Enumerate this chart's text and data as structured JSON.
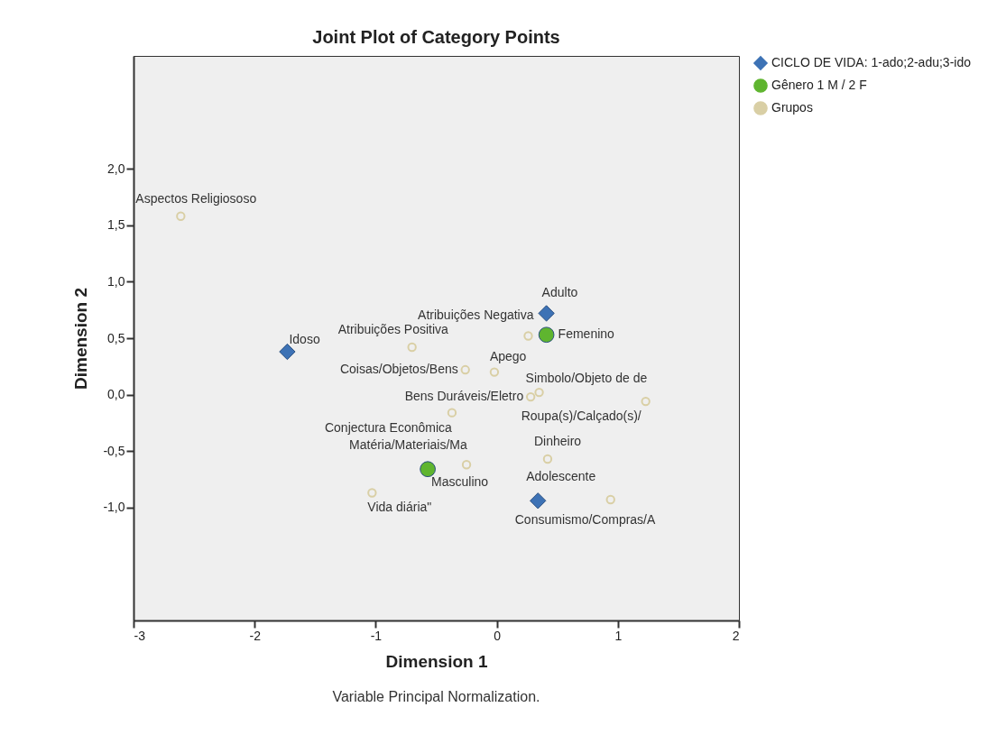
{
  "chart_data": {
    "type": "scatter",
    "title": "Joint Plot of Category Points",
    "xlabel": "Dimension 1",
    "ylabel": "Dimension 2",
    "xlim": [
      -3,
      2
    ],
    "xticks": [
      -3,
      -2,
      -1,
      0,
      1,
      2
    ],
    "ylim": [
      -2,
      3
    ],
    "yticks": [
      {
        "value": -1,
        "label": "-1,0"
      },
      {
        "value": -0.5,
        "label": "-0,5"
      },
      {
        "value": 0,
        "label": "0,0"
      },
      {
        "value": 0.5,
        "label": "0,5"
      },
      {
        "value": 1,
        "label": "1,0"
      },
      {
        "value": 1.5,
        "label": "1,5"
      },
      {
        "value": 2,
        "label": "2,0"
      }
    ],
    "grid": false,
    "legend": "top right",
    "series": [
      {
        "name": "CICLO DE VIDA: 1-ado;2-adu;3-ido",
        "color": "#3d72b5",
        "marker": "diamond",
        "x": [
          -1.73,
          0.41,
          0.34
        ],
        "values": [
          0.38,
          0.72,
          -0.94
        ]
      },
      {
        "name": "Gênero 1 M / 2 F",
        "color": "#5fb52f",
        "marker": "circle",
        "x": [
          0.41,
          -0.57
        ],
        "values": [
          0.53,
          -0.66
        ]
      },
      {
        "name": "Grupos",
        "color": "#d9cfa5",
        "marker": "circle",
        "x": [
          -2.61,
          -0.7,
          0.26,
          -0.26,
          -0.02,
          0.28,
          0.35,
          1.23,
          -0.37,
          -0.25,
          0.42,
          0.94,
          -1.03
        ],
        "values": [
          1.58,
          0.42,
          0.52,
          0.22,
          0.2,
          -0.02,
          0.02,
          -0.06,
          -0.16,
          -0.62,
          -0.57,
          -0.93,
          -0.87
        ]
      }
    ],
    "annotations": [
      {
        "text": "Idoso",
        "x": -1.73,
        "y": 0.38
      },
      {
        "text": "Adulto",
        "x": 0.41,
        "y": 0.72
      },
      {
        "text": "Adolescente",
        "x": 0.34,
        "y": -0.94
      },
      {
        "text": "Femenino",
        "x": 0.41,
        "y": 0.53
      },
      {
        "text": "Masculino",
        "x": -0.57,
        "y": -0.66
      },
      {
        "text": "Aspectos Religiososo",
        "x": -2.61,
        "y": 1.58
      },
      {
        "text": "Atribuições Positiva",
        "x": -0.7,
        "y": 0.42
      },
      {
        "text": "Atribuições Negativa",
        "x": 0.26,
        "y": 0.52
      },
      {
        "text": "Coisas/Objetos/Bens",
        "x": -0.26,
        "y": 0.22
      },
      {
        "text": "Apego",
        "x": -0.02,
        "y": 0.2
      },
      {
        "text": "Bens Duráveis/Eletro",
        "x": 0.28,
        "y": -0.02
      },
      {
        "text": "Simbolo/Objeto de de",
        "x": 0.35,
        "y": 0.02
      },
      {
        "text": "Roupa(s)/Calçado(s)/",
        "x": 1.23,
        "y": -0.06
      },
      {
        "text": "Conjectura Econômica",
        "x": -0.37,
        "y": -0.16
      },
      {
        "text": "Matéria/Materiais/Ma",
        "x": -0.25,
        "y": -0.62
      },
      {
        "text": "Dinheiro",
        "x": 0.42,
        "y": -0.57
      },
      {
        "text": "Consumismo/Compras/A",
        "x": 0.94,
        "y": -0.93
      },
      {
        "text": "Vida diária\"",
        "x": -1.03,
        "y": -0.87
      },
      "Variable Principal Normalization."
    ]
  }
}
